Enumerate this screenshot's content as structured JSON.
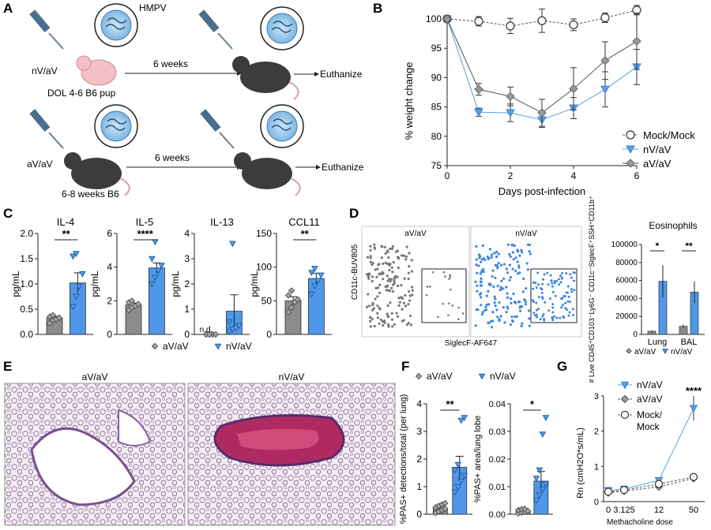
{
  "panels": {
    "A": {
      "letter": "A",
      "virus_label": "HMPV",
      "group1_label": "nV/aV",
      "group1_pup_label": "DOL 4-6 B6 pup",
      "group2_label": "aV/aV",
      "group2_mouse_label": "6-8 weeks B6",
      "interval_label": "6 weeks",
      "endpoint_label": "Euthanize"
    },
    "B": {
      "letter": "B",
      "chart_data": {
        "type": "line",
        "xlabel": "Days post-infection",
        "ylabel": "% weight change",
        "xlim": [
          0,
          6
        ],
        "ylim": [
          75,
          100
        ],
        "xticks": [
          0,
          2,
          4,
          6
        ],
        "yticks": [
          75,
          80,
          85,
          90,
          95,
          100
        ],
        "legend_position": "right",
        "series": [
          {
            "name": "Mock/Mock",
            "color": "#ffffff",
            "stroke": "#333333",
            "marker": "circle",
            "dash": true,
            "x": [
              0,
              1,
              2,
              3,
              4,
              5,
              6
            ],
            "y": [
              100,
              99.6,
              98.8,
              99.7,
              99.0,
              100.2,
              101.5
            ],
            "err": [
              0.3,
              0.8,
              1.3,
              2.0,
              1.0,
              0.8,
              0.8
            ]
          },
          {
            "name": "nV/aV",
            "color": "#5b9ee6",
            "stroke": "#3a7fd0",
            "marker": "triangle-down",
            "dash": false,
            "x": [
              0,
              1,
              2,
              3,
              4,
              5,
              6
            ],
            "y": [
              100,
              84.1,
              84.0,
              82.8,
              84.8,
              88.0,
              91.8
            ],
            "err": [
              0.3,
              0.7,
              1.5,
              1.3,
              1.8,
              3.0,
              3.0
            ]
          },
          {
            "name": "aV/aV",
            "color": "#999999",
            "stroke": "#666666",
            "marker": "diamond",
            "dash": false,
            "x": [
              0,
              1,
              2,
              3,
              4,
              5,
              6
            ],
            "y": [
              100,
              88.0,
              86.8,
              84.0,
              88.1,
              92.9,
              96.2
            ],
            "err": [
              0.3,
              1.0,
              1.6,
              2.3,
              3.6,
              3.2,
              4.8
            ]
          }
        ]
      }
    },
    "C": {
      "letter": "C",
      "legend": [
        "aV/aV",
        "nV/aV"
      ],
      "chart_data": [
        {
          "type": "bar",
          "title": "IL-4",
          "ylabel": "pg/mL",
          "ylim": [
            0,
            2.0
          ],
          "yticks": [
            "0.0",
            "0.5",
            "1.0",
            "1.5",
            "2.0"
          ],
          "categories": [
            "aV/aV",
            "nV/aV"
          ],
          "values": [
            0.32,
            1.02
          ],
          "err": [
            0.04,
            0.2
          ],
          "points": [
            [
              0.22,
              0.28,
              0.3,
              0.33,
              0.35,
              0.38
            ],
            [
              0.55,
              0.75,
              0.95,
              1.2,
              1.55,
              1.6
            ]
          ],
          "significance": "**"
        },
        {
          "type": "bar",
          "title": "IL-5",
          "ylabel": "pg/mL",
          "ylim": [
            0,
            6
          ],
          "yticks": [
            "0",
            "2",
            "4",
            "6"
          ],
          "categories": [
            "aV/aV",
            "nV/aV"
          ],
          "values": [
            1.75,
            3.95
          ],
          "err": [
            0.12,
            0.3
          ],
          "points": [
            [
              1.45,
              1.6,
              1.7,
              1.8,
              1.9,
              2.0
            ],
            [
              3.0,
              3.4,
              3.8,
              4.1,
              4.5,
              5.5
            ]
          ],
          "significance": "****"
        },
        {
          "type": "bar",
          "title": "IL-13",
          "ylabel": "pg/mL",
          "ylim": [
            0,
            4
          ],
          "yticks": [
            "0",
            "1",
            "2",
            "3",
            "4"
          ],
          "categories": [
            "aV/aV",
            "nV/aV"
          ],
          "values": [
            0.0,
            0.92
          ],
          "err": [
            0,
            0.65
          ],
          "points": [
            [
              0,
              0,
              0,
              0,
              0,
              0
            ],
            [
              0.1,
              0.2,
              0.25,
              0.35,
              0.5,
              3.6
            ]
          ],
          "annotation": "n.d."
        },
        {
          "type": "bar",
          "title": "CCL11",
          "ylabel": "pg/mL",
          "ylim": [
            0,
            150
          ],
          "yticks": [
            "0",
            "50",
            "100",
            "150"
          ],
          "categories": [
            "aV/aV",
            "nV/aV"
          ],
          "values": [
            50,
            83
          ],
          "err": [
            6,
            8
          ],
          "points": [
            [
              33,
              40,
              48,
              52,
              58,
              65
            ],
            [
              60,
              72,
              80,
              88,
              92,
              98
            ]
          ],
          "significance": "**"
        }
      ]
    },
    "D": {
      "letter": "D",
      "flow_left_title": "aV/aV",
      "flow_right_title": "nV/aV",
      "flow_ylabel": "CD11c-BUV805",
      "flow_xlabel": "SiglecF-AF647",
      "legend": [
        "aV/aV",
        "nV/aV"
      ],
      "chart_data": {
        "type": "bar",
        "title": "Eosinophils",
        "ylabel": "# Live CD45⁺CD103⁻Ly6G⁻ CD11c⁻SiglecF⁺SSH⁺CD11b⁺",
        "ylim": [
          0,
          100000
        ],
        "yticks": [
          "0",
          "20000",
          "40000",
          "60000",
          "80000",
          "100000"
        ],
        "categories": [
          "Lung",
          "BAL"
        ],
        "series": [
          {
            "name": "aV/aV",
            "values": [
              3500,
              9000
            ],
            "err": [
              1000,
              2000
            ]
          },
          {
            "name": "nV/aV",
            "values": [
              59000,
              47000
            ],
            "err": [
              18000,
              12000
            ]
          }
        ],
        "significance": [
          "*",
          "**"
        ]
      }
    },
    "E": {
      "letter": "E",
      "left_title": "aV/aV",
      "right_title": "nV/aV"
    },
    "F": {
      "letter": "F",
      "legend": [
        "aV/aV",
        "nV/aV"
      ],
      "chart_data": [
        {
          "type": "bar",
          "ylabel": "%PAS+ detections/total (per lung)",
          "ylim": [
            0,
            4
          ],
          "yticks": [
            "0",
            "1",
            "2",
            "3",
            "4"
          ],
          "categories": [
            "aV/aV",
            "nV/aV"
          ],
          "values": [
            0.22,
            1.7
          ],
          "err": [
            0.06,
            0.4
          ],
          "points": [
            [
              0.05,
              0.1,
              0.15,
              0.2,
              0.25,
              0.3,
              0.35,
              0.4
            ],
            [
              0.8,
              1.0,
              1.2,
              1.4,
              1.6,
              1.8,
              3.4,
              3.5
            ]
          ],
          "significance": "**"
        },
        {
          "type": "bar",
          "ylabel": "%PAS+ area/lung lobe",
          "ylim": [
            0,
            0.04
          ],
          "yticks": [
            "0.00",
            "0.01",
            "0.02",
            "0.03",
            "0.04"
          ],
          "categories": [
            "aV/aV",
            "nV/aV"
          ],
          "values": [
            0.0012,
            0.012
          ],
          "err": [
            0.0004,
            0.0035
          ],
          "points": [
            [
              0.0003,
              0.0006,
              0.0009,
              0.0012,
              0.0015,
              0.0018,
              0.002
            ],
            [
              0.005,
              0.007,
              0.009,
              0.011,
              0.013,
              0.016,
              0.029,
              0.035
            ]
          ],
          "significance": "*"
        }
      ]
    },
    "G": {
      "letter": "G",
      "significance": "****",
      "chart_data": {
        "type": "line",
        "xlabel": "Methacholine dose",
        "ylabel": "Rn (cmH2O*s/mL)",
        "categories": [
          "0",
          "3.125",
          "12",
          "50"
        ],
        "ylim": [
          0,
          3
        ],
        "yticks": [
          "0",
          "1",
          "2",
          "3"
        ],
        "series": [
          {
            "name": "nV/aV",
            "color": "#5b9ee6",
            "stroke": "#3a7fd0",
            "marker": "triangle-down",
            "dash": false,
            "values": [
              0.32,
              0.36,
              0.6,
              2.65
            ],
            "err": [
              0.03,
              0.04,
              0.08,
              0.35
            ]
          },
          {
            "name": "aV/aV",
            "color": "#999999",
            "stroke": "#555555",
            "marker": "diamond",
            "dash": true,
            "values": [
              0.25,
              0.3,
              0.42,
              0.66
            ],
            "err": [
              0.03,
              0.03,
              0.05,
              0.08
            ]
          },
          {
            "name": "Mock/Mock",
            "color": "#ffffff",
            "stroke": "#333333",
            "marker": "circle",
            "dash": true,
            "values": [
              0.28,
              0.33,
              0.5,
              0.7
            ],
            "err": [
              0.03,
              0.03,
              0.05,
              0.06
            ]
          }
        ],
        "legend_labels": [
          "nV/aV",
          "aV/aV",
          "Mock/",
          "Mock"
        ]
      }
    }
  }
}
